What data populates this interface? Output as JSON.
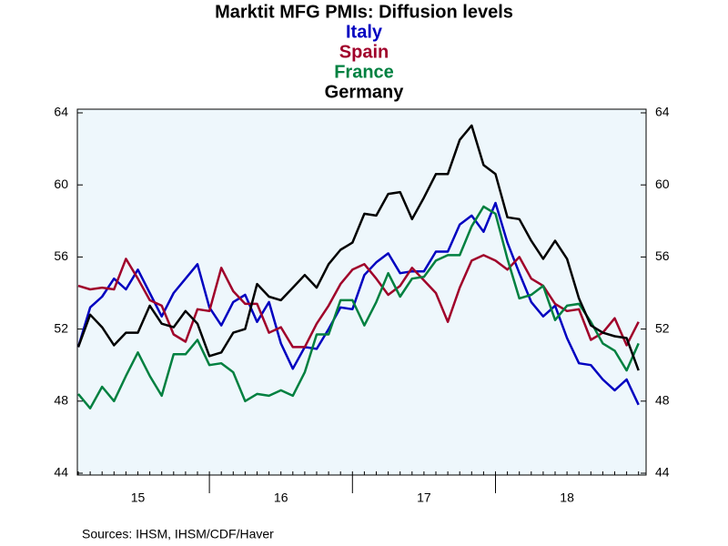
{
  "chart_data": {
    "type": "line",
    "title": "Marktit MFG PMIs: Diffusion levels",
    "source": "Sources:  IHSM, IHSM/CDF/Haver",
    "categories": [
      null,
      null,
      null,
      null,
      null,
      "15",
      null,
      null,
      null,
      null,
      null,
      null,
      null,
      null,
      null,
      null,
      null,
      "16",
      null,
      null,
      null,
      null,
      null,
      null,
      null,
      null,
      null,
      null,
      null,
      "17",
      null,
      null,
      null,
      null,
      null,
      null,
      null,
      null,
      null,
      null,
      null,
      "18",
      null,
      null,
      null,
      null,
      null,
      null
    ],
    "series": [
      {
        "name": "Italy",
        "color": "#0000c0",
        "values": [
          51.0,
          53.2,
          53.8,
          54.8,
          54.2,
          55.3,
          54.0,
          52.7,
          54.0,
          54.8,
          55.6,
          53.2,
          52.2,
          53.5,
          53.9,
          52.4,
          53.5,
          51.2,
          49.8,
          51.0,
          50.9,
          52.0,
          53.2,
          53.1,
          55.0,
          55.7,
          56.2,
          55.1,
          55.2,
          55.2,
          56.3,
          56.3,
          57.8,
          58.3,
          57.4,
          59.0,
          56.8,
          55.1,
          53.5,
          52.7,
          53.3,
          51.5,
          50.1,
          50.0,
          49.2,
          48.6,
          49.2,
          47.8
        ]
      },
      {
        "name": "Spain",
        "color": "#a0002a",
        "values": [
          54.4,
          54.2,
          54.3,
          54.2,
          55.9,
          54.8,
          53.6,
          53.3,
          51.7,
          51.3,
          53.1,
          53.0,
          55.4,
          54.1,
          53.4,
          53.4,
          51.8,
          52.1,
          51.0,
          51.0,
          52.3,
          53.3,
          54.5,
          55.3,
          55.6,
          54.8,
          53.9,
          54.4,
          55.4,
          54.7,
          54.0,
          52.4,
          54.3,
          55.8,
          56.1,
          55.8,
          55.3,
          56.0,
          54.8,
          54.4,
          53.4,
          53.0,
          53.1,
          51.4,
          51.8,
          52.6,
          51.1,
          52.4
        ]
      },
      {
        "name": "France",
        "color": "#008040",
        "values": [
          48.4,
          47.6,
          48.8,
          48.0,
          49.4,
          50.7,
          49.4,
          48.3,
          50.6,
          50.6,
          51.4,
          50.0,
          50.1,
          49.6,
          48.0,
          48.4,
          48.3,
          48.6,
          48.3,
          49.6,
          51.7,
          51.7,
          53.6,
          53.6,
          52.2,
          53.5,
          55.1,
          53.8,
          54.8,
          54.9,
          55.8,
          56.1,
          56.1,
          57.7,
          58.8,
          58.4,
          55.9,
          53.7,
          53.9,
          54.4,
          52.5,
          53.3,
          53.4,
          52.4,
          51.2,
          50.8,
          49.7,
          51.2
        ]
      },
      {
        "name": "Germany",
        "color": "#000000",
        "values": [
          51.0,
          52.8,
          52.1,
          51.1,
          51.8,
          51.8,
          53.3,
          52.3,
          52.1,
          53.0,
          52.3,
          50.5,
          50.7,
          51.8,
          52.0,
          54.5,
          53.8,
          53.6,
          54.3,
          55.0,
          54.3,
          55.6,
          56.4,
          56.8,
          58.4,
          58.3,
          59.5,
          59.6,
          58.1,
          59.3,
          60.6,
          60.6,
          62.5,
          63.3,
          61.1,
          60.6,
          58.2,
          58.1,
          56.9,
          55.9,
          56.9,
          55.9,
          53.7,
          52.2,
          51.8,
          51.6,
          51.5,
          49.7
        ]
      }
    ],
    "ylim": [
      44,
      64
    ],
    "yticks": [
      44,
      48,
      52,
      56,
      60,
      64
    ],
    "grid": false
  }
}
